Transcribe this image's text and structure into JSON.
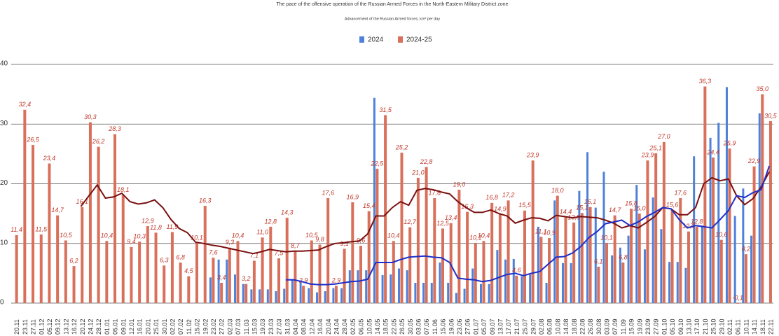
{
  "chart_data": {
    "type": "bar",
    "title": "The pace of the offensive operation of the Russian Armed Forces in the North-Eastern Military District zone",
    "subtitle": "Advancement of the Russian Armed forces, km² per day",
    "categories": [
      "20.11",
      "23.11",
      "27.11",
      "01.12",
      "05.12",
      "09.12",
      "13.12",
      "16.12",
      "20.12",
      "24.12",
      "28.12",
      "01.01",
      "05.01",
      "09.01",
      "12.01",
      "16.01",
      "20.01",
      "25.01",
      "30.01",
      "02.02",
      "07.02",
      "11.02",
      "15.02",
      "19.02",
      "23.02",
      "27.02",
      "02.03",
      "07.03",
      "11.03",
      "15.03",
      "19.03",
      "23.03",
      "27.03",
      "31.03",
      "04.04",
      "08.04",
      "12.04",
      "16.04",
      "20.04",
      "24.04",
      "28.04",
      "02.05",
      "06.05",
      "10.05",
      "14.05",
      "18.05",
      "22.05",
      "26.05",
      "30.05",
      "03.06",
      "07.06",
      "11.06",
      "15.06",
      "19.06",
      "23.06",
      "27.06",
      "01.07",
      "05.07",
      "09.07",
      "13.07",
      "17.07",
      "21.07",
      "25.07",
      "29.07",
      "02.08",
      "06.08",
      "10.08",
      "14.08",
      "18.08",
      "22.08",
      "26.08",
      "30.08",
      "03.09",
      "07.09",
      "11.09",
      "15.09",
      "19.09",
      "23.09",
      "27.09",
      "01.10",
      "05.10",
      "09.10",
      "13.10",
      "17.10",
      "21.10",
      "25.10",
      "29.10",
      "02.11",
      "06.11",
      "10.11",
      "14.11",
      "18.11",
      "22.11"
    ],
    "series": [
      {
        "name": "2024",
        "color": "#4f81d9",
        "values": [
          null,
          null,
          null,
          null,
          null,
          null,
          null,
          null,
          null,
          null,
          null,
          null,
          null,
          null,
          null,
          null,
          null,
          null,
          null,
          null,
          null,
          null,
          null,
          null,
          4.3,
          7.3,
          7.3,
          4.8,
          3.2,
          2.3,
          2.3,
          2.3,
          2.0,
          2.4,
          4.0,
          3.5,
          2.5,
          1.8,
          2.0,
          2.5,
          2.5,
          5.5,
          5.5,
          5.5,
          34.4,
          4.7,
          4.8,
          5.8,
          5.5,
          3.4,
          3.4,
          3.4,
          6.8,
          3.4,
          1.7,
          2.4,
          5.8,
          3.2,
          3.2,
          8.9,
          7.3,
          7.4,
          4.5,
          4.8,
          12.8,
          3.4,
          17.2,
          6.7,
          6.7,
          18.8,
          25.3,
          16.0,
          22.0,
          8.0,
          9.3,
          11.3,
          19.8,
          9.0,
          17.7,
          12.4,
          6.9,
          6.9,
          5.9,
          24.6,
          13.0,
          27.7,
          30.2,
          36.2,
          14.6,
          19.2,
          11.3,
          31.8,
          null
        ]
      },
      {
        "name": "2024-25",
        "color": "#d9705b",
        "values": [
          11.4,
          32.4,
          26.5,
          11.5,
          23.4,
          14.7,
          10.5,
          6.2,
          16.1,
          30.3,
          26.2,
          10.4,
          28.3,
          18.1,
          9.4,
          10.3,
          12.9,
          11.8,
          6.3,
          11.9,
          6.8,
          4.5,
          10.1,
          16.3,
          7.6,
          3.4,
          9.3,
          10.4,
          3.2,
          7.1,
          11.0,
          12.8,
          7.5,
          14.3,
          8.7,
          2.9,
          10.5,
          9.8,
          17.6,
          2.9,
          9.1,
          16.9,
          9.6,
          15.4,
          22.5,
          31.5,
          10.4,
          25.2,
          12.7,
          21.0,
          22.8,
          17.6,
          12.5,
          13.4,
          19.0,
          15.3,
          10.1,
          10.4,
          16.8,
          14.9,
          17.2,
          4.6,
          15.5,
          23.9,
          11.1,
          10.9,
          18.0,
          14.4,
          13.5,
          15.1,
          16.1,
          6.1,
          10.1,
          14.7,
          6.8,
          15.8,
          15.0,
          23.9,
          25.1,
          27.0,
          15.6,
          17.6,
          12.0,
          12.8,
          36.3,
          24.4,
          10.6,
          25.9,
          -0.1,
          8.2,
          22.9,
          35.0,
          30.5
        ],
        "value_labels": [
          "11,4",
          "32,4",
          "26,5",
          "11,5",
          "23,4",
          "14,7",
          "10,5",
          "6,2",
          "16,1",
          "30,3",
          "26,2",
          "10,4",
          "28,3",
          "18,1",
          "9,4",
          "10,3",
          "12,9",
          "11,8",
          "6,3",
          "11,9",
          "6,8",
          "4,5",
          "10,1",
          "16,3",
          "7,6",
          "3,4",
          "9,3",
          "10,4",
          "3,2",
          "7,1",
          "11,0",
          "12,8",
          "7,5",
          "14,3",
          "8,7",
          "2,9",
          "10,5",
          "9,8",
          "17,6",
          "2,9",
          "9,1",
          "16,9",
          "9,6",
          "15,4",
          "22,5",
          "31,5",
          "10,4",
          "25,2",
          "12,7",
          "21,0",
          "22,8",
          "17,6",
          "12,5",
          "13,4",
          "19,0",
          "15,3",
          "10,1",
          "10,4",
          "16,8",
          "14,9",
          "17,2",
          "4,6",
          "15,5",
          "23,9",
          "11,1",
          "10,9",
          "18,0",
          "14,4",
          "13,5",
          "15,1",
          "16,1",
          "6,1",
          "10,1",
          "14,7",
          "6,8",
          "15,8",
          "15,0",
          "23,9",
          "25,1",
          "27,0",
          "15,6",
          "17,6",
          "12,0",
          "12,8",
          "36,3",
          "24,4",
          "10,6",
          "25,9",
          "-0,1",
          "8,2",
          "22,9",
          "35,0",
          "30,5"
        ]
      }
    ],
    "trend_lines": [
      {
        "color": "#7a1010",
        "values": [
          null,
          null,
          null,
          null,
          null,
          null,
          null,
          null,
          16.2,
          18.0,
          19.8,
          17.6,
          17.8,
          18.4,
          17.0,
          16.6,
          16.8,
          17.3,
          16.0,
          14.0,
          12.5,
          11.8,
          10.2,
          10.0,
          9.7,
          9.5,
          9.2,
          8.9,
          8.6,
          8.3,
          8.6,
          9.0,
          8.8,
          8.6,
          8.7,
          8.7,
          8.8,
          8.9,
          9.5,
          10.0,
          10.1,
          10.3,
          10.4,
          11.6,
          14.6,
          14.6,
          16.0,
          17.0,
          16.4,
          18.9,
          19.2,
          19.0,
          18.6,
          18.3,
          17.0,
          16.0,
          15.2,
          15.2,
          15.6,
          15.0,
          14.6,
          13.4,
          13.9,
          14.3,
          14.2,
          13.8,
          14.7,
          14.5,
          14.3,
          14.5,
          14.4,
          14.3,
          13.9,
          13.4,
          12.6,
          13.0,
          12.6,
          13.5,
          14.5,
          16.0,
          15.8,
          14.8,
          14.8,
          16.0,
          20.0,
          21.0,
          20.5,
          20.8,
          18.0,
          16.5,
          17.5,
          19.5,
          22.0
        ]
      },
      {
        "color": "#1f2fc8",
        "values": [
          null,
          null,
          null,
          null,
          null,
          null,
          null,
          null,
          null,
          null,
          null,
          null,
          null,
          null,
          null,
          null,
          null,
          null,
          null,
          null,
          null,
          null,
          null,
          null,
          null,
          null,
          null,
          null,
          null,
          null,
          null,
          null,
          null,
          3.9,
          3.9,
          3.6,
          3.2,
          3.1,
          3.1,
          3.2,
          3.4,
          3.6,
          3.7,
          4.0,
          6.8,
          6.8,
          6.8,
          7.3,
          7.7,
          7.8,
          7.9,
          7.7,
          7.6,
          6.8,
          4.2,
          4.0,
          3.9,
          3.6,
          3.8,
          4.3,
          4.8,
          5.0,
          4.6,
          5.0,
          5.3,
          6.5,
          7.7,
          7.8,
          8.4,
          9.5,
          11.0,
          12.0,
          13.3,
          13.6,
          13.9,
          13.0,
          13.6,
          14.5,
          15.2,
          16.0,
          15.8,
          14.0,
          12.6,
          13.0,
          12.8,
          12.6,
          14.0,
          15.5,
          18.0,
          17.7,
          18.5,
          19.0,
          23.0
        ]
      }
    ],
    "ylim": [
      0,
      40
    ],
    "yticks": [
      0,
      10,
      20,
      30,
      40
    ],
    "grid": true,
    "legend": "top"
  }
}
